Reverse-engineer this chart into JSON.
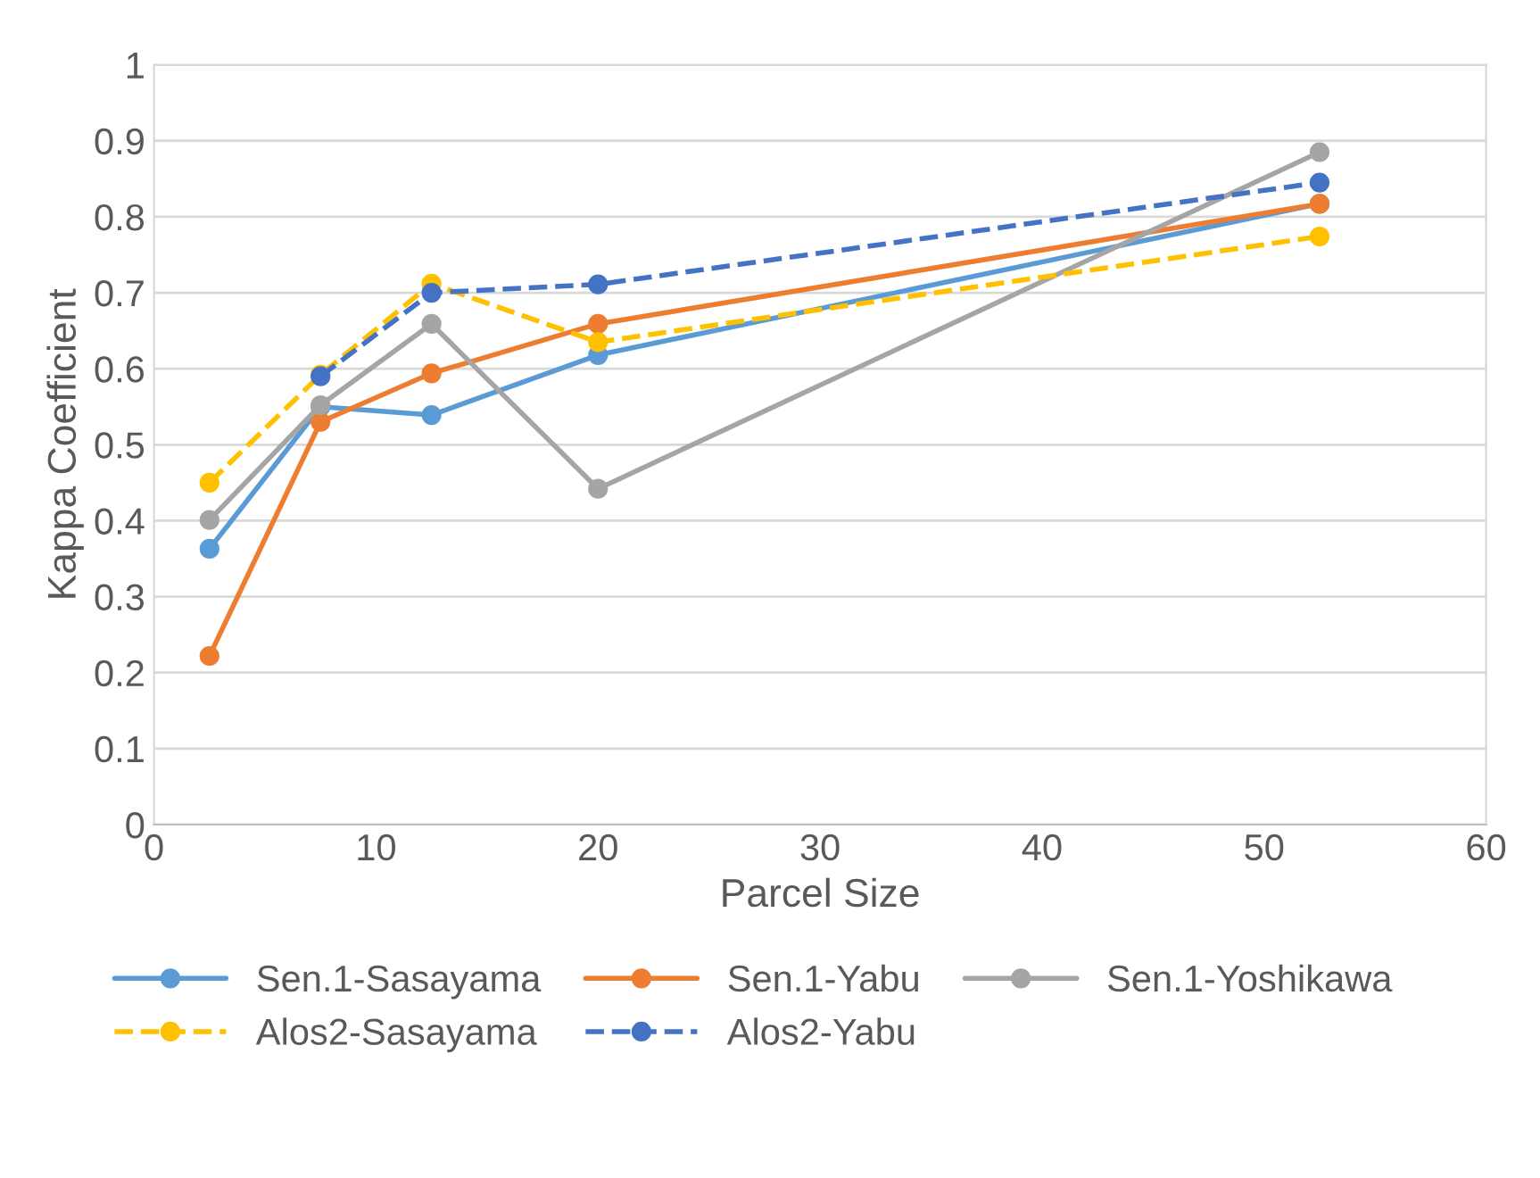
{
  "chart_data": {
    "type": "line",
    "xlabel": "Parcel Size",
    "ylabel": "Kappa Coefficient",
    "x": [
      2.5,
      7.5,
      12.5,
      20,
      52.5
    ],
    "series": [
      {
        "name": "Sen.1-Sasayama",
        "color": "#5b9bd5",
        "line_style": "solid",
        "values": [
          0.363,
          0.55,
          0.539,
          0.618,
          0.817
        ]
      },
      {
        "name": "Sen.1-Yabu",
        "color": "#ed7d31",
        "line_style": "solid",
        "values": [
          0.222,
          0.53,
          0.594,
          0.659,
          0.817
        ]
      },
      {
        "name": "Sen.1-Yoshikawa",
        "color": "#a5a5a5",
        "line_style": "solid",
        "values": [
          0.401,
          0.552,
          0.659,
          0.442,
          0.885
        ]
      },
      {
        "name": "Alos2-Sasayama",
        "color": "#ffc000",
        "line_style": "dashed",
        "values": [
          0.45,
          0.592,
          0.712,
          0.635,
          0.774
        ]
      },
      {
        "name": "Alos2-Yabu",
        "color": "#4472c4",
        "line_style": "dashed",
        "values": [
          null,
          0.59,
          0.7,
          0.711,
          0.845
        ]
      }
    ],
    "xlim": [
      0,
      60
    ],
    "xticks": [
      0,
      10,
      20,
      30,
      40,
      50,
      60
    ],
    "ylim": [
      0,
      1
    ],
    "yticks": [
      0,
      0.1,
      0.2,
      0.3,
      0.4,
      0.5,
      0.6,
      0.7,
      0.8,
      0.9,
      1
    ],
    "grid": "y",
    "legend": "bottom",
    "marker": "circle"
  }
}
